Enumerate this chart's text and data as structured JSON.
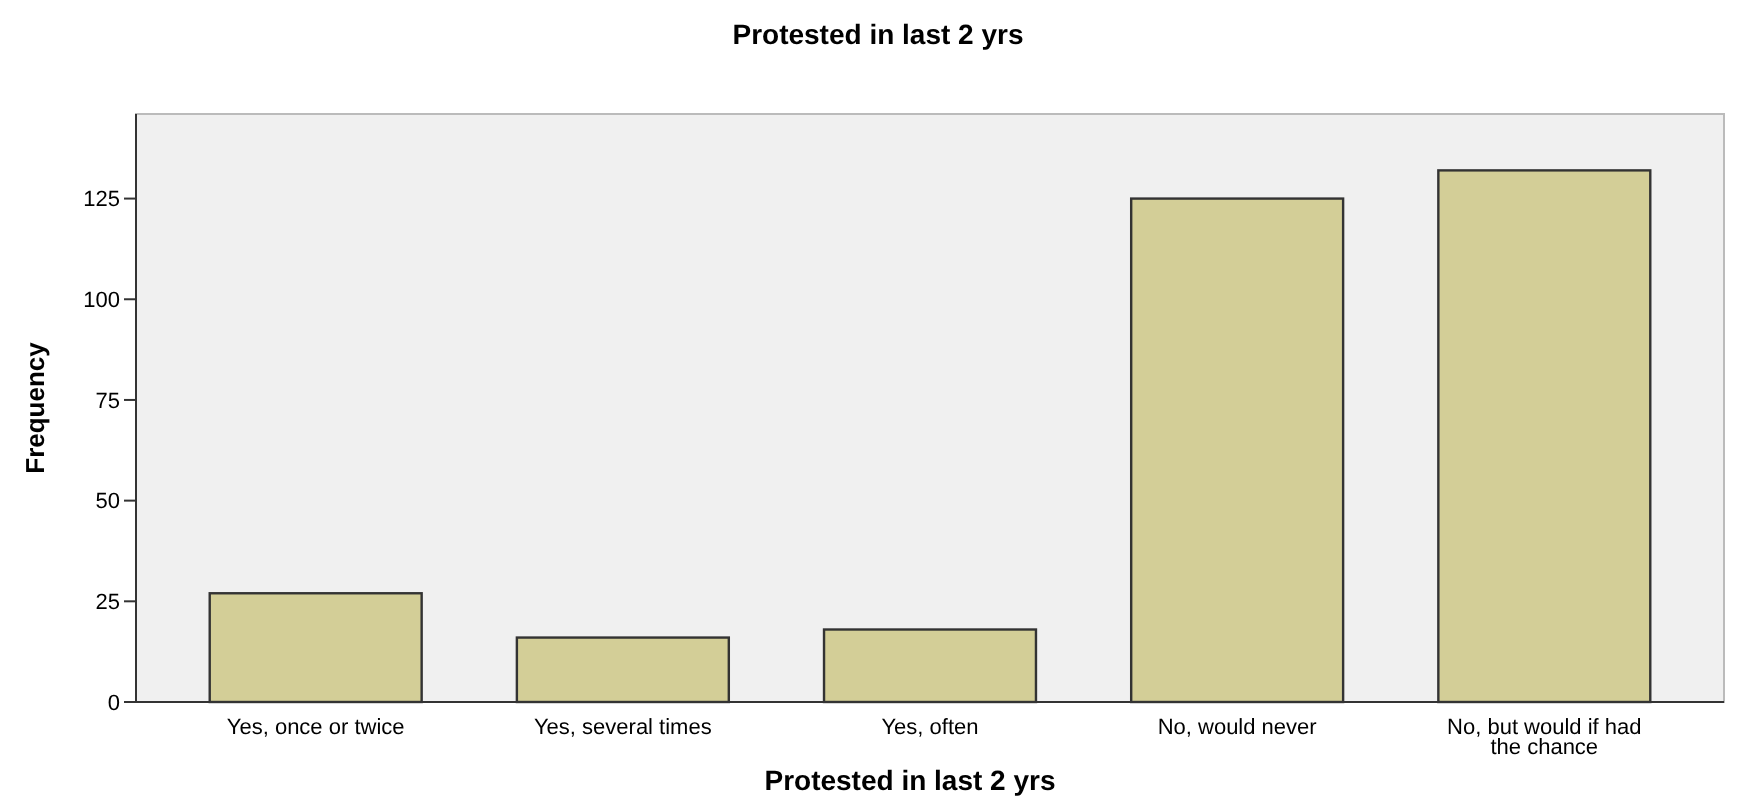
{
  "chart_data": {
    "type": "bar",
    "title": "Protested in last 2 yrs",
    "xlabel": "Protested in last 2 yrs",
    "ylabel": "Frequency",
    "categories": [
      "Yes, once or twice",
      "Yes, several times",
      "Yes, often",
      "No, would never",
      "No, but would if had the chance"
    ],
    "values": [
      27,
      16,
      18,
      125,
      132
    ],
    "color": "#d3ce97",
    "ylim": [
      0,
      146
    ],
    "yticks": [
      0,
      25,
      50,
      75,
      100,
      125
    ],
    "grid": false
  }
}
